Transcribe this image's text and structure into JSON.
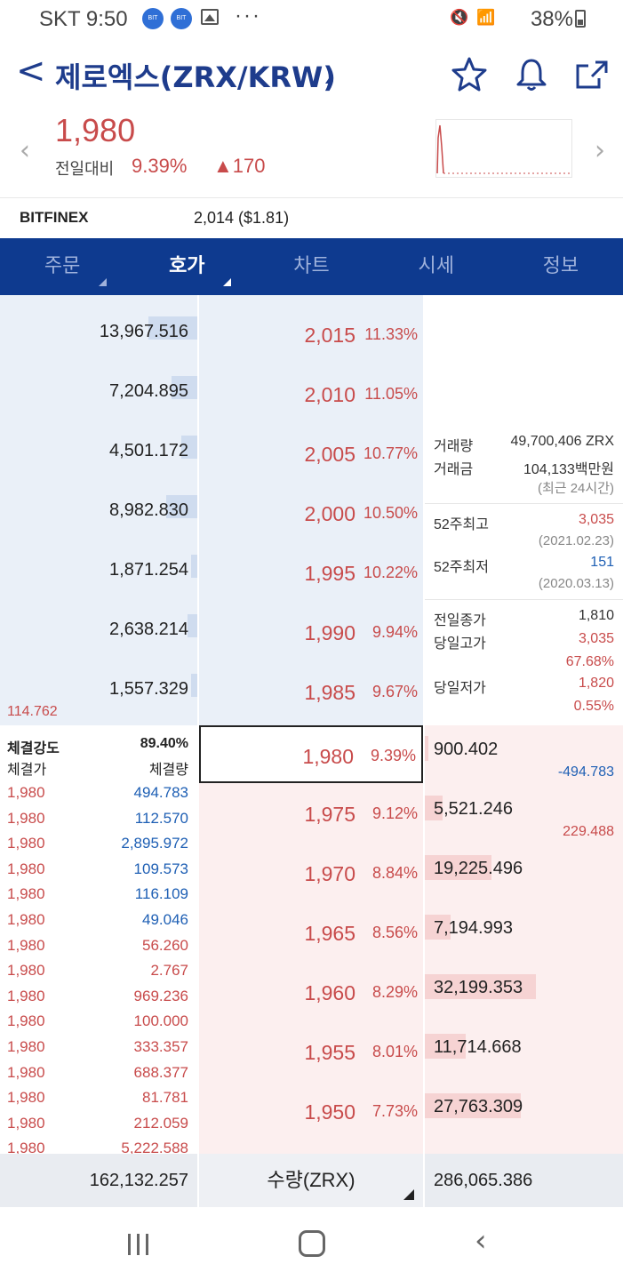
{
  "status_bar": {
    "carrier_time": "SKT 9:50",
    "dots": "···",
    "battery": "38%",
    "badge1": "BIT",
    "badge2": "BIT"
  },
  "header": {
    "title": "제로엑스(ZRX/KRW)",
    "back_label": "<"
  },
  "price": {
    "current": "1,980",
    "prev_label": "전일대비",
    "pct": "9.39%",
    "change": "▲170"
  },
  "reference": {
    "exchange": "BITFINEX",
    "value": "2,014 ($1.81)"
  },
  "tabs": [
    {
      "label": "주문",
      "active": false
    },
    {
      "label": "호가",
      "active": true
    },
    {
      "label": "차트",
      "active": false
    },
    {
      "label": "시세",
      "active": false
    },
    {
      "label": "정보",
      "active": false
    }
  ],
  "asks": [
    {
      "qty": "13,967.516",
      "price": "2,015",
      "rate": "11.33%",
      "depth": 0.25
    },
    {
      "qty": "7,204.895",
      "price": "2,010",
      "rate": "11.05%",
      "depth": 0.13
    },
    {
      "qty": "4,501.172",
      "price": "2,005",
      "rate": "10.77%",
      "depth": 0.08
    },
    {
      "qty": "8,982.830",
      "price": "2,000",
      "rate": "10.50%",
      "depth": 0.16
    },
    {
      "qty": "1,871.254",
      "price": "1,995",
      "rate": "10.22%",
      "depth": 0.03
    },
    {
      "qty": "2,638.214",
      "price": "1,990",
      "rate": "9.94%",
      "depth": 0.05
    },
    {
      "qty": "1,557.329",
      "price": "1,985",
      "rate": "9.67%",
      "depth": 0.03
    }
  ],
  "ask_below_note": "114.762",
  "bids": [
    {
      "qty": "900.402",
      "price": "1,980",
      "rate": "9.39%",
      "depth": 0.01,
      "delta": "-494.783",
      "delta_color": "#1e5fb4",
      "current": true
    },
    {
      "qty": "5,521.246",
      "price": "1,975",
      "rate": "9.12%",
      "depth": 0.09,
      "delta": "229.488",
      "delta_color": "#c84b4b",
      "current": false
    },
    {
      "qty": "19,225.496",
      "price": "1,970",
      "rate": "8.84%",
      "depth": 0.34,
      "delta": "",
      "delta_color": "",
      "current": false
    },
    {
      "qty": "7,194.993",
      "price": "1,965",
      "rate": "8.56%",
      "depth": 0.13,
      "delta": "",
      "delta_color": "",
      "current": false
    },
    {
      "qty": "32,199.353",
      "price": "1,960",
      "rate": "8.29%",
      "depth": 0.57,
      "delta": "",
      "delta_color": "",
      "current": false
    },
    {
      "qty": "11,714.668",
      "price": "1,955",
      "rate": "8.01%",
      "depth": 0.21,
      "delta": "",
      "delta_color": "",
      "current": false
    },
    {
      "qty": "27,763.309",
      "price": "1,950",
      "rate": "7.73%",
      "depth": 0.49,
      "delta": "",
      "delta_color": "",
      "current": false
    }
  ],
  "info": {
    "volume_label": "거래량",
    "volume_value": "49,700,406 ZRX",
    "amount_label": "거래금",
    "amount_value": "104,133백만원",
    "recent_note": "(최근 24시간)",
    "high52_label": "52주최고",
    "high52_value": "3,035",
    "high52_date": "(2021.02.23)",
    "low52_label": "52주최저",
    "low52_value": "151",
    "low52_date": "(2020.03.13)",
    "prev_close_label": "전일종가",
    "prev_close_value": "1,810",
    "day_high_label": "당일고가",
    "day_high_value": "3,035",
    "day_high_pct": "67.68%",
    "day_low_label": "당일저가",
    "day_low_value": "1,820",
    "day_low_pct": "0.55%"
  },
  "trades": {
    "strength_label": "체결강도",
    "strength_value": "89.40%",
    "price_header": "체결가",
    "volume_header": "체결량",
    "rows": [
      {
        "price": "1,980",
        "volume": "494.783",
        "side": "blue"
      },
      {
        "price": "1,980",
        "volume": "112.570",
        "side": "blue"
      },
      {
        "price": "1,980",
        "volume": "2,895.972",
        "side": "blue"
      },
      {
        "price": "1,980",
        "volume": "109.573",
        "side": "blue"
      },
      {
        "price": "1,980",
        "volume": "116.109",
        "side": "blue"
      },
      {
        "price": "1,980",
        "volume": "49.046",
        "side": "blue"
      },
      {
        "price": "1,980",
        "volume": "56.260",
        "side": "red"
      },
      {
        "price": "1,980",
        "volume": "2.767",
        "side": "red"
      },
      {
        "price": "1,980",
        "volume": "969.236",
        "side": "red"
      },
      {
        "price": "1,980",
        "volume": "100.000",
        "side": "red"
      },
      {
        "price": "1,980",
        "volume": "333.357",
        "side": "red"
      },
      {
        "price": "1,980",
        "volume": "688.377",
        "side": "red"
      },
      {
        "price": "1,980",
        "volume": "81.781",
        "side": "red"
      },
      {
        "price": "1,980",
        "volume": "212.059",
        "side": "red"
      },
      {
        "price": "1,980",
        "volume": "5,222.588",
        "side": "red"
      }
    ]
  },
  "footer": {
    "ask_total": "162,132.257",
    "unit_label": "수량(ZRX)",
    "bid_total": "286,065.386"
  },
  "colors": {
    "up": "#c84b4b",
    "down": "#1e5fb4",
    "nav": "#0e3a8f"
  }
}
